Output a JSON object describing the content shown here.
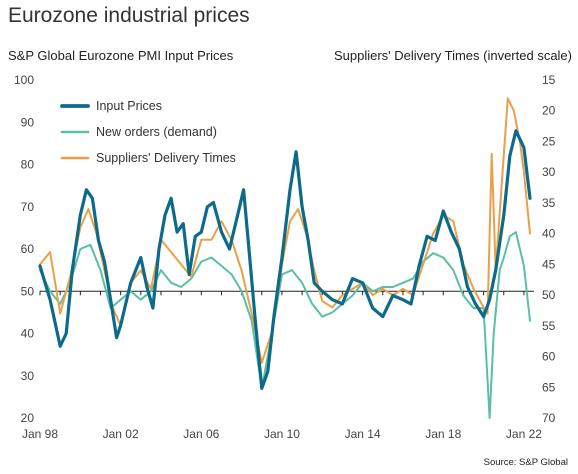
{
  "chart_data": {
    "type": "line",
    "title": "Eurozone industrial prices",
    "ylabel_left": "S&P Global Eurozone PMI Input Prices",
    "ylabel_right": "Suppliers' Delivery Times (inverted scale)",
    "source": "Source: S&P Global",
    "ylim_left": [
      20,
      100
    ],
    "yticks_left": [
      20,
      30,
      40,
      50,
      60,
      70,
      80,
      90,
      100
    ],
    "ylim_right": [
      70,
      15
    ],
    "yticks_right": [
      15,
      20,
      25,
      30,
      35,
      40,
      45,
      50,
      55,
      60,
      65,
      70
    ],
    "right_axis_inverted": true,
    "xlim": [
      1998.0,
      2022.5
    ],
    "xticks": [
      1998,
      2002,
      2006,
      2010,
      2014,
      2018,
      2022
    ],
    "xticklabels": [
      "Jan 98",
      "Jan 02",
      "Jan 06",
      "Jan 10",
      "Jan 14",
      "Jan 18",
      "Jan 22"
    ],
    "reference_line": 50,
    "legend_position": "top-left",
    "series": [
      {
        "name": "Input Prices",
        "axis": "left",
        "color": "#0d6a8a",
        "x": [
          1998.0,
          1998.5,
          1999.0,
          1999.3,
          1999.6,
          2000.0,
          2000.3,
          2000.6,
          2000.9,
          2001.2,
          2001.5,
          2001.8,
          2002.0,
          2002.5,
          2003.0,
          2003.3,
          2003.6,
          2003.9,
          2004.2,
          2004.5,
          2004.8,
          2005.1,
          2005.4,
          2005.7,
          2006.0,
          2006.3,
          2006.6,
          2007.0,
          2007.4,
          2007.8,
          2008.1,
          2008.4,
          2008.7,
          2009.0,
          2009.3,
          2009.6,
          2010.0,
          2010.4,
          2010.7,
          2011.0,
          2011.3,
          2011.6,
          2012.0,
          2012.5,
          2013.0,
          2013.5,
          2014.0,
          2014.5,
          2015.0,
          2015.5,
          2016.0,
          2016.4,
          2016.8,
          2017.2,
          2017.6,
          2018.0,
          2018.4,
          2018.8,
          2019.2,
          2019.6,
          2020.0,
          2020.3,
          2020.6,
          2021.0,
          2021.3,
          2021.6,
          2022.0,
          2022.3
        ],
        "values": [
          56,
          48,
          37,
          40,
          55,
          68,
          74,
          72,
          62,
          57,
          48,
          39,
          42,
          52,
          58,
          51,
          46,
          60,
          68,
          72,
          64,
          66,
          54,
          63,
          64,
          70,
          71,
          64,
          60,
          68,
          74,
          58,
          42,
          27,
          31,
          44,
          58,
          74,
          83,
          70,
          62,
          52,
          50,
          48,
          47,
          53,
          52,
          46,
          44,
          49,
          48,
          47,
          56,
          63,
          62,
          69,
          64,
          60,
          51,
          47,
          44,
          48,
          55,
          68,
          82,
          88,
          84,
          72
        ]
      },
      {
        "name": "New orders (demand)",
        "axis": "left",
        "color": "#5bbfa5",
        "x": [
          1998.0,
          1998.5,
          1999.0,
          1999.5,
          2000.0,
          2000.5,
          2001.0,
          2001.5,
          2002.0,
          2002.5,
          2003.0,
          2003.5,
          2004.0,
          2004.5,
          2005.0,
          2005.5,
          2006.0,
          2006.5,
          2007.0,
          2007.5,
          2008.0,
          2008.5,
          2009.0,
          2009.5,
          2010.0,
          2010.5,
          2011.0,
          2011.5,
          2012.0,
          2012.5,
          2013.0,
          2013.5,
          2014.0,
          2014.5,
          2015.0,
          2015.5,
          2016.0,
          2016.5,
          2017.0,
          2017.5,
          2018.0,
          2018.5,
          2019.0,
          2019.5,
          2020.0,
          2020.3,
          2020.5,
          2020.8,
          2021.0,
          2021.3,
          2021.6,
          2022.0,
          2022.3
        ],
        "values": [
          55,
          50,
          47,
          52,
          60,
          61,
          55,
          46,
          48,
          50,
          48,
          50,
          55,
          52,
          51,
          53,
          57,
          58,
          56,
          54,
          50,
          43,
          27,
          40,
          54,
          55,
          52,
          47,
          44,
          45,
          47,
          49,
          52,
          50,
          51,
          51,
          52,
          53,
          57,
          59,
          58,
          55,
          49,
          46,
          46,
          20,
          40,
          55,
          58,
          63,
          64,
          56,
          43
        ]
      },
      {
        "name": "Suppliers' Delivery Times",
        "axis": "right",
        "color": "#e8a04a",
        "x": [
          1998.0,
          1998.5,
          1999.0,
          1999.5,
          2000.0,
          2000.4,
          2000.8,
          2001.2,
          2001.6,
          2002.0,
          2002.5,
          2003.0,
          2003.5,
          2004.0,
          2004.5,
          2005.0,
          2005.5,
          2006.0,
          2006.5,
          2007.0,
          2007.5,
          2008.0,
          2008.5,
          2009.0,
          2009.5,
          2010.0,
          2010.4,
          2010.8,
          2011.2,
          2011.6,
          2012.0,
          2012.5,
          2013.0,
          2013.5,
          2014.0,
          2014.5,
          2015.0,
          2015.5,
          2016.0,
          2016.5,
          2017.0,
          2017.5,
          2018.0,
          2018.5,
          2019.0,
          2019.5,
          2020.0,
          2020.2,
          2020.4,
          2020.6,
          2020.9,
          2021.2,
          2021.5,
          2021.8,
          2022.0,
          2022.3
        ],
        "values": [
          45,
          43,
          53,
          47,
          39,
          36,
          40,
          46,
          52,
          55,
          48,
          46,
          49,
          41,
          43,
          45,
          47,
          41,
          41,
          38,
          41,
          46,
          53,
          61,
          56,
          45,
          38,
          36,
          40,
          46,
          51,
          52,
          50,
          49,
          48,
          50,
          49,
          50,
          49,
          50,
          45,
          40,
          37,
          38,
          45,
          49,
          52,
          53,
          27,
          46,
          32,
          18,
          20,
          25,
          30,
          40
        ]
      }
    ]
  }
}
